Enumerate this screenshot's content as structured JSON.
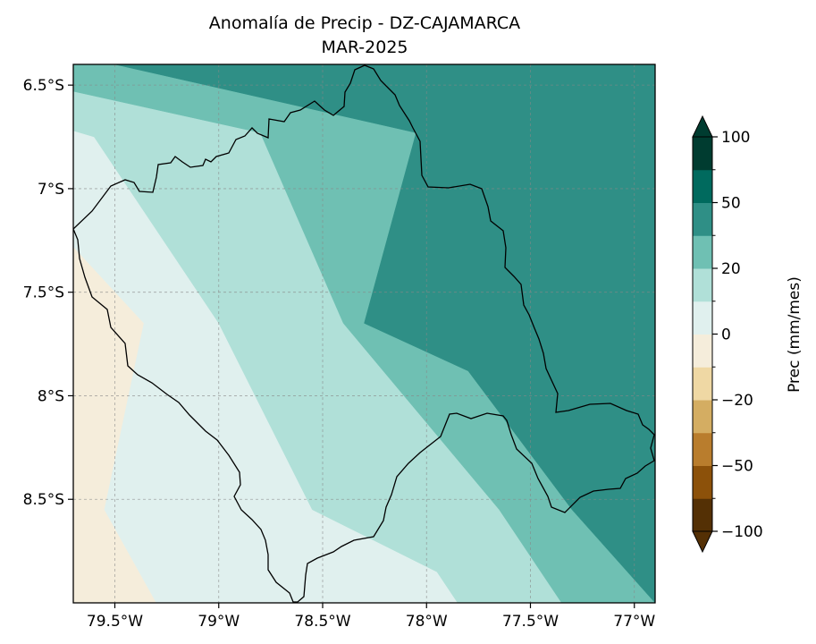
{
  "chart_data": {
    "type": "heatmap",
    "title": "Anomalía de Precip - DZ-CAJAMARCA",
    "subtitle": "MAR-2025",
    "x_range": [
      -79.7,
      -76.9
    ],
    "y_range": [
      -9.0,
      -6.4
    ],
    "x_ticks": [
      {
        "value": -79.5,
        "label": "79.5°W"
      },
      {
        "value": -79.0,
        "label": "79°W"
      },
      {
        "value": -78.5,
        "label": "78.5°W"
      },
      {
        "value": -78.0,
        "label": "78°W"
      },
      {
        "value": -77.5,
        "label": "77.5°W"
      },
      {
        "value": -77.0,
        "label": "77°W"
      }
    ],
    "y_ticks": [
      {
        "value": -6.5,
        "label": "6.5°S"
      },
      {
        "value": -7.0,
        "label": "7°S"
      },
      {
        "value": -7.5,
        "label": "7.5°S"
      },
      {
        "value": -8.0,
        "label": "8°S"
      },
      {
        "value": -8.5,
        "label": "8.5°S"
      }
    ],
    "grid": true,
    "colorbar": {
      "label": "Prec (mm/mes)",
      "levels": [
        -100,
        -75,
        -50,
        -35,
        -20,
        -10,
        0,
        10,
        20,
        35,
        50,
        75,
        100
      ],
      "tick_labels": [
        {
          "value": 100,
          "label": "100"
        },
        {
          "value": 50,
          "label": "50"
        },
        {
          "value": 20,
          "label": "20"
        },
        {
          "value": 0,
          "label": "0"
        },
        {
          "value": -20,
          "label": "−20"
        },
        {
          "value": -50,
          "label": "−50"
        },
        {
          "value": -100,
          "label": "−100"
        }
      ],
      "colors": [
        "#543005",
        "#8c510a",
        "#b97d2d",
        "#d4ad62",
        "#efd8a4",
        "#f5eddb",
        "#e0f0ee",
        "#b0e0d8",
        "#6fc0b3",
        "#2f8f86",
        "#006a5e",
        "#003c30"
      ],
      "extend": "both"
    },
    "regions": [
      {
        "level": -10,
        "color": "#f5eddb",
        "polygon": [
          [
            -79.7,
            -7.28
          ],
          [
            -79.36,
            -7.65
          ],
          [
            -79.55,
            -8.55
          ],
          [
            -79.3,
            -9.0
          ],
          [
            -79.7,
            -9.0
          ]
        ]
      },
      {
        "level": 0,
        "color": "#e0f0ee",
        "polygon": [
          [
            -79.7,
            -6.72
          ],
          [
            -79.6,
            -6.75
          ],
          [
            -79.0,
            -7.65
          ],
          [
            -78.55,
            -8.55
          ],
          [
            -77.95,
            -8.85
          ],
          [
            -77.85,
            -9.0
          ],
          [
            -79.3,
            -9.0
          ],
          [
            -79.55,
            -8.55
          ],
          [
            -79.36,
            -7.65
          ],
          [
            -79.7,
            -7.28
          ]
        ]
      },
      {
        "level": 10,
        "color": "#b0e0d8",
        "polygon": [
          [
            -79.7,
            -6.53
          ],
          [
            -78.8,
            -6.73
          ],
          [
            -78.4,
            -7.65
          ],
          [
            -77.65,
            -8.55
          ],
          [
            -77.35,
            -9.0
          ],
          [
            -77.85,
            -9.0
          ],
          [
            -77.95,
            -8.85
          ],
          [
            -78.55,
            -8.55
          ],
          [
            -79.0,
            -7.65
          ],
          [
            -79.6,
            -6.75
          ],
          [
            -79.7,
            -6.72
          ]
        ]
      },
      {
        "level": 20,
        "color": "#6fc0b3",
        "polygon": [
          [
            -79.7,
            -6.4
          ],
          [
            -79.5,
            -6.4
          ],
          [
            -78.05,
            -6.73
          ],
          [
            -78.3,
            -7.65
          ],
          [
            -77.8,
            -7.88
          ],
          [
            -77.3,
            -8.55
          ],
          [
            -76.9,
            -9.0
          ],
          [
            -77.35,
            -9.0
          ],
          [
            -77.65,
            -8.55
          ],
          [
            -78.4,
            -7.65
          ],
          [
            -78.8,
            -6.73
          ],
          [
            -79.7,
            -6.53
          ]
        ]
      },
      {
        "level": 35,
        "color": "#2f8f86",
        "polygon": [
          [
            -79.5,
            -6.4
          ],
          [
            -76.9,
            -6.4
          ],
          [
            -76.9,
            -9.0
          ],
          [
            -77.3,
            -8.55
          ],
          [
            -77.8,
            -7.88
          ],
          [
            -78.3,
            -7.65
          ],
          [
            -78.05,
            -6.73
          ]
        ]
      }
    ]
  }
}
